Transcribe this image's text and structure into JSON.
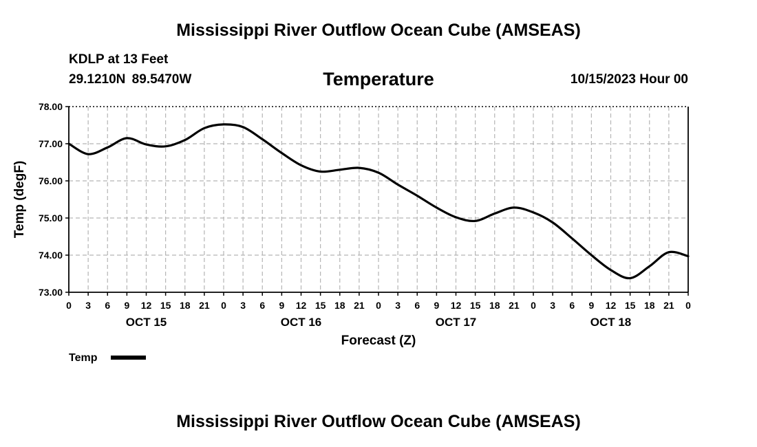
{
  "header": {
    "main_title": "Mississippi River Outflow Ocean Cube (AMSEAS)",
    "station": "KDLP at 13 Feet",
    "coordinates": "29.1210N  89.5470W",
    "datetime": "10/15/2023 Hour 00",
    "footer_title": "Mississippi River Outflow Ocean Cube (AMSEAS)"
  },
  "chart_data": {
    "type": "line",
    "title": "Temperature",
    "xlabel": "Forecast (Z)",
    "ylabel": "Temp (degF)",
    "ylim": [
      73.0,
      78.0
    ],
    "y_ticks": [
      "73.00",
      "74.00",
      "75.00",
      "76.00",
      "77.00",
      "78.00"
    ],
    "x_range_hours": [
      0,
      96
    ],
    "x_ticks": [
      "0",
      "3",
      "6",
      "9",
      "12",
      "15",
      "18",
      "21",
      "0",
      "3",
      "6",
      "9",
      "12",
      "15",
      "18",
      "21",
      "0",
      "3",
      "6",
      "9",
      "12",
      "15",
      "18",
      "21",
      "0",
      "3",
      "6",
      "9",
      "12",
      "15",
      "18",
      "21",
      "0"
    ],
    "day_labels": [
      {
        "label": "OCT 15",
        "hour": 12
      },
      {
        "label": "OCT 16",
        "hour": 36
      },
      {
        "label": "OCT 17",
        "hour": 60
      },
      {
        "label": "OCT 18",
        "hour": 84
      }
    ],
    "grid": true,
    "series": [
      {
        "name": "Temp",
        "color": "#000000",
        "x": [
          0,
          3,
          6,
          9,
          12,
          15,
          18,
          21,
          24,
          27,
          30,
          33,
          36,
          39,
          42,
          45,
          48,
          51,
          54,
          57,
          60,
          63,
          66,
          69,
          72,
          75,
          78,
          81,
          84,
          87,
          90,
          93,
          96
        ],
        "values": [
          77.0,
          76.72,
          76.9,
          77.15,
          76.98,
          76.93,
          77.1,
          77.42,
          77.52,
          77.45,
          77.12,
          76.75,
          76.42,
          76.25,
          76.3,
          76.35,
          76.22,
          75.9,
          75.6,
          75.28,
          75.02,
          74.92,
          75.12,
          75.28,
          75.15,
          74.88,
          74.45,
          74.0,
          73.6,
          73.38,
          73.7,
          74.08,
          73.97
        ]
      }
    ],
    "legend": [
      {
        "label": "Temp",
        "color": "#000000"
      }
    ]
  }
}
